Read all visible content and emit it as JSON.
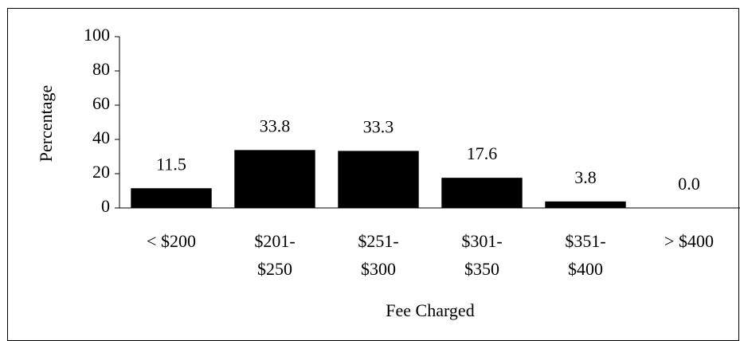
{
  "chart_data": {
    "type": "bar",
    "x_label": "Fee Charged",
    "y_label": "Percentage",
    "categories": [
      "< $200",
      "$201-\n$250",
      "$251-\n$300",
      "$301-\n$350",
      "$351-\n$400",
      "> $400"
    ],
    "values": [
      11.5,
      33.8,
      33.3,
      17.6,
      3.8,
      0
    ],
    "value_labels": [
      "11.5",
      "33.8",
      "33.3",
      "17.6",
      "3.8",
      "0.0"
    ],
    "color": "#000000",
    "ylim": [
      0,
      100
    ],
    "yticks": [
      0,
      20,
      40,
      60,
      80,
      100
    ],
    "grid": false
  }
}
